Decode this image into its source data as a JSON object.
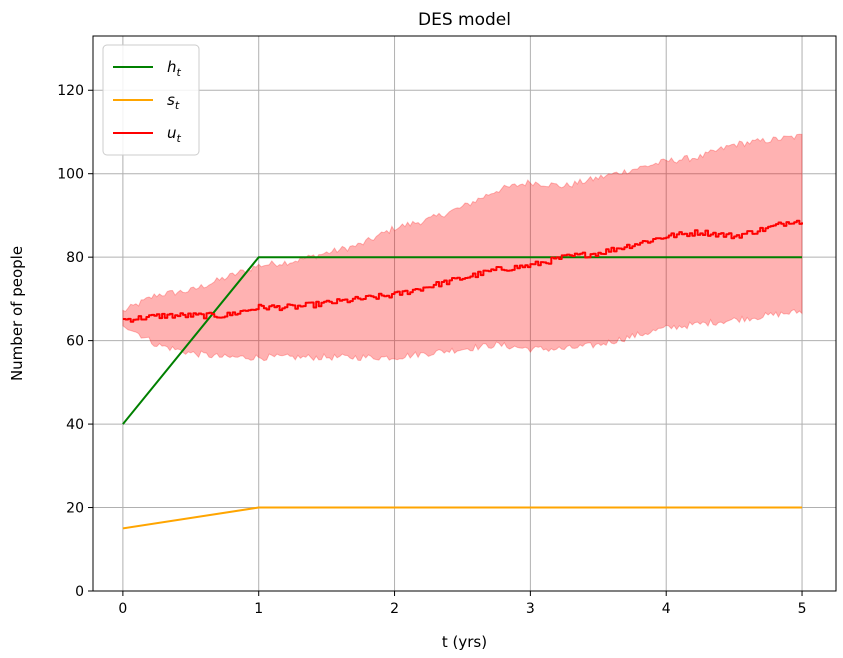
{
  "chart_data": {
    "type": "line",
    "title": "DES model",
    "xlabel": "t (yrs)",
    "ylabel": "Number of people",
    "xlim": [
      -0.22,
      5.25
    ],
    "ylim": [
      0,
      133
    ],
    "xticks": [
      0,
      1,
      2,
      3,
      4,
      5
    ],
    "yticks": [
      0,
      20,
      40,
      60,
      80,
      100,
      120
    ],
    "grid": true,
    "legend_position": "top-left",
    "series": [
      {
        "name": "h",
        "subscript": "t",
        "color": "#008000",
        "points": [
          [
            0,
            40
          ],
          [
            1,
            80
          ],
          [
            5,
            80
          ]
        ]
      },
      {
        "name": "s",
        "subscript": "t",
        "color": "#ffa500",
        "points": [
          [
            0,
            15
          ],
          [
            1,
            20
          ],
          [
            5,
            20
          ]
        ]
      },
      {
        "name": "u",
        "subscript": "t",
        "color": "#ff0000",
        "points": [
          [
            0,
            65
          ],
          [
            0.3,
            66
          ],
          [
            0.5,
            66
          ],
          [
            0.75,
            66
          ],
          [
            1,
            68
          ],
          [
            1.25,
            68
          ],
          [
            1.5,
            69
          ],
          [
            1.75,
            70
          ],
          [
            2,
            71
          ],
          [
            2.25,
            73
          ],
          [
            2.5,
            75
          ],
          [
            2.75,
            77
          ],
          [
            3,
            78
          ],
          [
            3.25,
            80
          ],
          [
            3.5,
            81
          ],
          [
            3.75,
            83
          ],
          [
            4,
            85
          ],
          [
            4.25,
            86
          ],
          [
            4.5,
            85
          ],
          [
            4.75,
            87
          ],
          [
            4.95,
            89
          ],
          [
            5,
            88
          ]
        ],
        "band": {
          "color": "#ff0000",
          "opacity": 0.3,
          "upper": [
            [
              0,
              67
            ],
            [
              0.25,
              71
            ],
            [
              0.5,
              72
            ],
            [
              0.75,
              75
            ],
            [
              1,
              78
            ],
            [
              1.25,
              79
            ],
            [
              1.5,
              81
            ],
            [
              1.75,
              83
            ],
            [
              2,
              87
            ],
            [
              2.25,
              89
            ],
            [
              2.5,
              92
            ],
            [
              2.75,
              96
            ],
            [
              3,
              98
            ],
            [
              3.25,
              97
            ],
            [
              3.5,
              99
            ],
            [
              3.75,
              101
            ],
            [
              4,
              103
            ],
            [
              4.25,
              104
            ],
            [
              4.5,
              107
            ],
            [
              4.75,
              108
            ],
            [
              5,
              109
            ]
          ],
          "lower": [
            [
              0,
              64
            ],
            [
              0.25,
              59
            ],
            [
              0.5,
              57
            ],
            [
              0.75,
              56
            ],
            [
              1,
              56
            ],
            [
              1.25,
              56
            ],
            [
              1.5,
              56
            ],
            [
              1.75,
              56
            ],
            [
              2,
              56
            ],
            [
              2.25,
              57
            ],
            [
              2.5,
              58
            ],
            [
              2.75,
              59
            ],
            [
              3,
              58
            ],
            [
              3.25,
              58
            ],
            [
              3.5,
              59
            ],
            [
              3.75,
              61
            ],
            [
              4,
              63
            ],
            [
              4.25,
              64
            ],
            [
              4.5,
              65
            ],
            [
              4.75,
              66
            ],
            [
              5,
              67
            ]
          ]
        }
      }
    ]
  }
}
